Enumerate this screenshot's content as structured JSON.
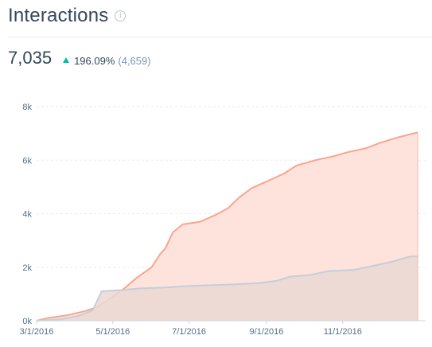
{
  "header": {
    "title": "Interactions",
    "info_icon": "info-icon"
  },
  "summary": {
    "total": "7,035",
    "trend_icon": "triangle-up-icon",
    "change": "196.09%",
    "previous": "(4,659)"
  },
  "colors": {
    "current_line": "#f8a58f",
    "current_fill": "#fde0d8",
    "previous_line": "#c5ced8",
    "previous_fill": "#ebd8d4",
    "trend_up": "#00bda5",
    "grid": "#e5ebf0"
  },
  "chart_data": {
    "type": "area",
    "ylim": [
      0,
      8000
    ],
    "yticks": [
      {
        "value": 0,
        "label": "0k"
      },
      {
        "value": 2000,
        "label": "2k"
      },
      {
        "value": 4000,
        "label": "4k"
      },
      {
        "value": 6000,
        "label": "6k"
      },
      {
        "value": 8000,
        "label": "8k"
      }
    ],
    "xlim": [
      "2016-03-01",
      "2016-12-31"
    ],
    "xticks": [
      {
        "value": "2016-03-01",
        "label": "3/1/2016"
      },
      {
        "value": "2016-05-01",
        "label": "5/1/2016"
      },
      {
        "value": "2016-07-01",
        "label": "7/1/2016"
      },
      {
        "value": "2016-09-01",
        "label": "9/1/2016"
      },
      {
        "value": "2016-11-01",
        "label": "11/1/2016"
      }
    ],
    "grid": true,
    "series": [
      {
        "points": [
          [
            "2016-03-01",
            0
          ],
          [
            "2016-03-10",
            100
          ],
          [
            "2016-03-25",
            200
          ],
          [
            "2016-04-08",
            350
          ],
          [
            "2016-04-18",
            500
          ],
          [
            "2016-04-25",
            700
          ],
          [
            "2016-05-01",
            900
          ],
          [
            "2016-05-10",
            1200
          ],
          [
            "2016-05-20",
            1600
          ],
          [
            "2016-06-01",
            2000
          ],
          [
            "2016-06-08",
            2500
          ],
          [
            "2016-06-12",
            2700
          ],
          [
            "2016-06-18",
            3300
          ],
          [
            "2016-06-26",
            3600
          ],
          [
            "2016-07-10",
            3700
          ],
          [
            "2016-07-22",
            3950
          ],
          [
            "2016-08-01",
            4200
          ],
          [
            "2016-08-10",
            4600
          ],
          [
            "2016-08-20",
            4950
          ],
          [
            "2016-09-01",
            5200
          ],
          [
            "2016-09-15",
            5500
          ],
          [
            "2016-09-25",
            5800
          ],
          [
            "2016-10-10",
            6000
          ],
          [
            "2016-10-25",
            6150
          ],
          [
            "2016-11-05",
            6300
          ],
          [
            "2016-11-20",
            6450
          ],
          [
            "2016-12-01",
            6650
          ],
          [
            "2016-12-15",
            6850
          ],
          [
            "2016-12-31",
            7035
          ]
        ]
      },
      {
        "points": [
          [
            "2016-03-01",
            0
          ],
          [
            "2016-03-20",
            50
          ],
          [
            "2016-04-05",
            200
          ],
          [
            "2016-04-15",
            400
          ],
          [
            "2016-04-22",
            1100
          ],
          [
            "2016-05-10",
            1150
          ],
          [
            "2016-05-20",
            1200
          ],
          [
            "2016-06-15",
            1250
          ],
          [
            "2016-07-01",
            1300
          ],
          [
            "2016-08-01",
            1350
          ],
          [
            "2016-08-25",
            1400
          ],
          [
            "2016-09-10",
            1500
          ],
          [
            "2016-09-20",
            1650
          ],
          [
            "2016-10-05",
            1700
          ],
          [
            "2016-10-20",
            1850
          ],
          [
            "2016-11-10",
            1900
          ],
          [
            "2016-11-25",
            2050
          ],
          [
            "2016-12-10",
            2200
          ],
          [
            "2016-12-25",
            2400
          ],
          [
            "2016-12-31",
            2400
          ]
        ]
      }
    ]
  }
}
